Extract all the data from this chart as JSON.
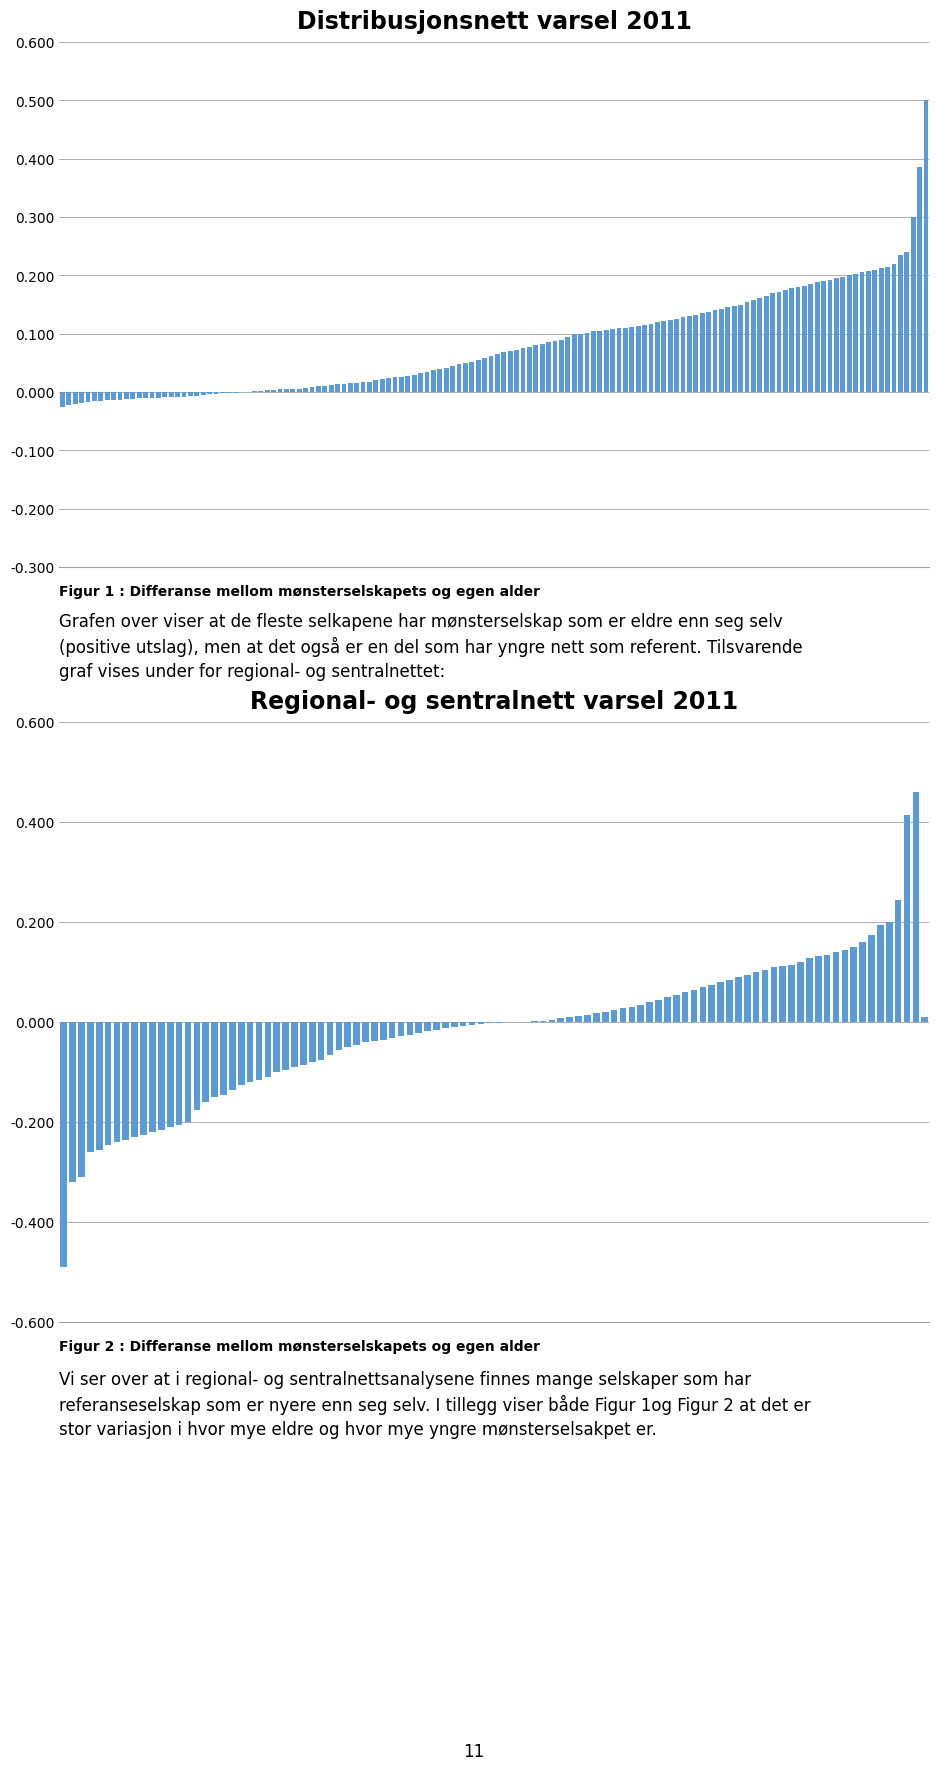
{
  "chart1_title": "Distribusjonsnett varsel 2011",
  "chart1_ylim": [
    -0.3,
    0.6
  ],
  "chart1_yticks": [
    -0.3,
    -0.2,
    -0.1,
    0.0,
    0.1,
    0.2,
    0.3,
    0.4,
    0.5,
    0.6
  ],
  "chart1_values": [
    -0.025,
    -0.022,
    -0.02,
    -0.018,
    -0.017,
    -0.016,
    -0.015,
    -0.014,
    -0.014,
    -0.013,
    -0.012,
    -0.012,
    -0.011,
    -0.011,
    -0.01,
    -0.01,
    -0.009,
    -0.009,
    -0.008,
    -0.008,
    -0.007,
    -0.006,
    -0.005,
    -0.004,
    -0.003,
    -0.002,
    -0.001,
    -0.001,
    0.0,
    0.0,
    0.001,
    0.002,
    0.003,
    0.004,
    0.005,
    0.005,
    0.006,
    0.006,
    0.007,
    0.008,
    0.01,
    0.011,
    0.012,
    0.013,
    0.014,
    0.015,
    0.016,
    0.017,
    0.018,
    0.02,
    0.022,
    0.024,
    0.025,
    0.026,
    0.028,
    0.03,
    0.032,
    0.035,
    0.037,
    0.04,
    0.042,
    0.045,
    0.048,
    0.05,
    0.052,
    0.055,
    0.058,
    0.062,
    0.065,
    0.068,
    0.07,
    0.072,
    0.075,
    0.078,
    0.08,
    0.082,
    0.085,
    0.088,
    0.09,
    0.095,
    0.1,
    0.1,
    0.102,
    0.104,
    0.105,
    0.106,
    0.108,
    0.11,
    0.11,
    0.112,
    0.113,
    0.115,
    0.117,
    0.12,
    0.122,
    0.123,
    0.125,
    0.128,
    0.13,
    0.132,
    0.135,
    0.138,
    0.14,
    0.142,
    0.145,
    0.148,
    0.15,
    0.155,
    0.158,
    0.162,
    0.165,
    0.17,
    0.172,
    0.175,
    0.178,
    0.18,
    0.182,
    0.185,
    0.188,
    0.19,
    0.192,
    0.195,
    0.198,
    0.2,
    0.202,
    0.205,
    0.208,
    0.21,
    0.212,
    0.215,
    0.22,
    0.235,
    0.24,
    0.3,
    0.385,
    0.5
  ],
  "chart2_title": "Regional- og sentralnett varsel 2011",
  "chart2_ylim": [
    -0.6,
    0.6
  ],
  "chart2_yticks": [
    -0.6,
    -0.4,
    -0.2,
    0.0,
    0.2,
    0.4,
    0.6
  ],
  "chart2_values": [
    -0.49,
    -0.32,
    -0.31,
    -0.26,
    -0.255,
    -0.245,
    -0.24,
    -0.235,
    -0.23,
    -0.225,
    -0.22,
    -0.215,
    -0.21,
    -0.205,
    -0.2,
    -0.175,
    -0.16,
    -0.15,
    -0.145,
    -0.135,
    -0.125,
    -0.12,
    -0.115,
    -0.11,
    -0.1,
    -0.095,
    -0.09,
    -0.085,
    -0.08,
    -0.075,
    -0.065,
    -0.055,
    -0.05,
    -0.045,
    -0.04,
    -0.038,
    -0.035,
    -0.032,
    -0.028,
    -0.025,
    -0.022,
    -0.018,
    -0.015,
    -0.012,
    -0.01,
    -0.008,
    -0.006,
    -0.004,
    -0.002,
    -0.001,
    0.0,
    0.0,
    0.001,
    0.002,
    0.003,
    0.005,
    0.008,
    0.01,
    0.012,
    0.015,
    0.018,
    0.02,
    0.025,
    0.028,
    0.03,
    0.035,
    0.04,
    0.045,
    0.05,
    0.055,
    0.06,
    0.065,
    0.07,
    0.075,
    0.08,
    0.085,
    0.09,
    0.095,
    0.1,
    0.105,
    0.11,
    0.112,
    0.115,
    0.12,
    0.128,
    0.132,
    0.135,
    0.14,
    0.145,
    0.15,
    0.16,
    0.175,
    0.195,
    0.2,
    0.245,
    0.415,
    0.46,
    0.01
  ],
  "bar_color": "#5b9bd5",
  "background_color": "#ffffff",
  "figcaption1": "Figur 1 : Differanse mellom mønsterselskapets og egen alder",
  "figcaption2": "Figur 2 : Differanse mellom mønsterselskapets og egen alder",
  "text1": "Grafen over viser at de fleste selkapene har mønsterselskap som er eldre enn seg selv\n(positive utslag), men at det også er en del som har yngre nett som referent. Tilsvarende\ngraf vises under for regional- og sentralnettet:",
  "text2": "Vi ser over at i regional- og sentralnettsanalysene finnes mange selskaper som har\nreferanseselskap som er nyere enn seg selv. I tillegg viser både Figur 1og Figur 2 at det er\nstor variasjon i hvor mye eldre og hvor mye yngre mønsterselsakpet er.",
  "page_number": "11",
  "title_fontsize": 17,
  "caption_fontsize": 10,
  "body_fontsize": 12,
  "ytick_fontsize": 10,
  "grid_color": "#a0a0a0",
  "spine_color": "#a0a0a0"
}
